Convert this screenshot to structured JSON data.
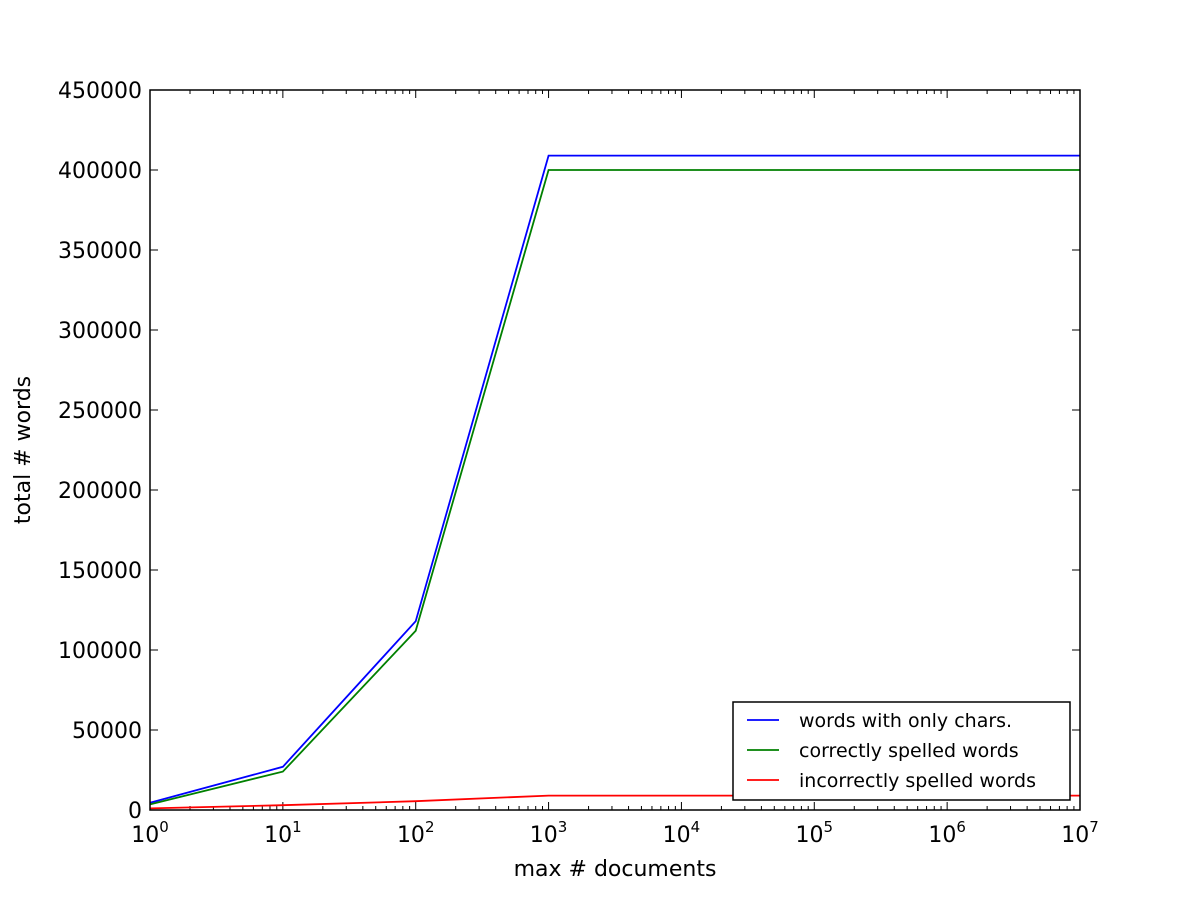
{
  "chart_data": {
    "type": "line",
    "title": "",
    "xlabel": "max # documents",
    "ylabel": "total # words",
    "x_scale": "log",
    "xlim": [
      1,
      10000000
    ],
    "ylim": [
      0,
      450000
    ],
    "x_ticks": [
      {
        "base": "10",
        "exp": "0",
        "value": 1
      },
      {
        "base": "10",
        "exp": "1",
        "value": 10
      },
      {
        "base": "10",
        "exp": "2",
        "value": 100
      },
      {
        "base": "10",
        "exp": "3",
        "value": 1000
      },
      {
        "base": "10",
        "exp": "4",
        "value": 10000
      },
      {
        "base": "10",
        "exp": "5",
        "value": 100000
      },
      {
        "base": "10",
        "exp": "6",
        "value": 1000000
      },
      {
        "base": "10",
        "exp": "7",
        "value": 10000000
      }
    ],
    "y_ticks": [
      "0",
      "50000",
      "100000",
      "150000",
      "200000",
      "250000",
      "300000",
      "350000",
      "400000",
      "450000"
    ],
    "grid": false,
    "legend_position": "lower-right",
    "x": [
      1,
      10,
      100,
      1000,
      10000,
      100000,
      1000000,
      10000000
    ],
    "series": [
      {
        "name": "words with only chars.",
        "color": "#0000ff",
        "values": [
          4500,
          27000,
          118000,
          409000,
          409000,
          409000,
          409000,
          409000
        ]
      },
      {
        "name": "correctly spelled words",
        "color": "#008000",
        "values": [
          3500,
          24000,
          112000,
          400000,
          400000,
          400000,
          400000,
          400000
        ]
      },
      {
        "name": "incorrectly spelled words",
        "color": "#ff0000",
        "values": [
          1000,
          3000,
          5500,
          9000,
          9000,
          9000,
          9000,
          9000
        ]
      }
    ]
  }
}
